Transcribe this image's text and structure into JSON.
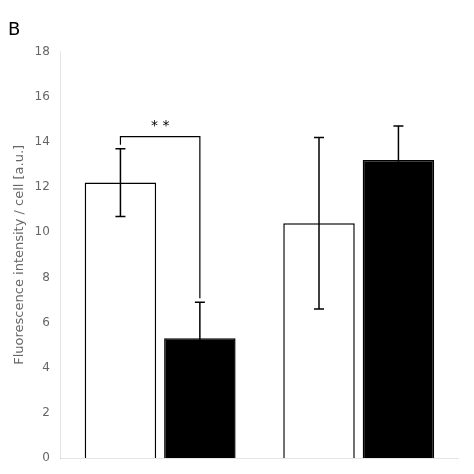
{
  "chart_data": {
    "type": "bar",
    "title": "B",
    "ylabel": "Fluorescence intensity / cell [a.u.]",
    "categories": [
      null,
      null
    ],
    "series": [
      {
        "color": "#ffffff",
        "values": [
          12.2,
          10.4
        ],
        "errors": [
          1.5,
          3.8
        ]
      },
      {
        "color": "#000000",
        "values": [
          5.3,
          13.2
        ],
        "errors": [
          1.6,
          1.5
        ]
      }
    ],
    "annotations": [
      "* *"
    ],
    "ylim": [
      0,
      18
    ],
    "yticks": [
      0,
      2,
      4,
      6,
      8,
      10,
      12,
      14,
      16,
      18
    ],
    "grid": false,
    "tick_labels": "y"
  }
}
